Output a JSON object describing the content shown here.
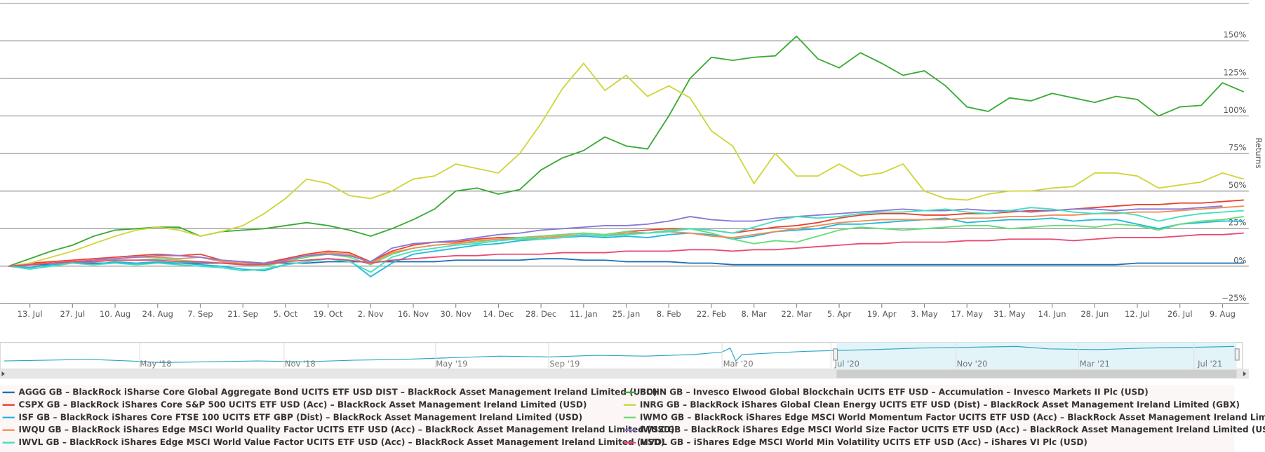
{
  "chart_data": {
    "type": "line",
    "y_axis_title": "Returns",
    "categories": [
      null,
      "13. Jul",
      null,
      "27. Jul",
      null,
      "10. Aug",
      null,
      "24. Aug",
      null,
      "7. Sep",
      null,
      "21. Sep",
      null,
      "5. Oct",
      null,
      "19. Oct",
      null,
      "2. Nov",
      null,
      "16. Nov",
      null,
      "30. Nov",
      null,
      "14. Dec",
      null,
      "28. Dec",
      null,
      "11. Jan",
      null,
      "25. Jan",
      null,
      "8. Feb",
      null,
      "22. Feb",
      null,
      "8. Mar",
      null,
      "22. Mar",
      null,
      "5. Apr",
      null,
      "19. Apr",
      null,
      "3. May",
      null,
      "17. May",
      null,
      "31. May",
      null,
      "14. Jun",
      null,
      "28. Jun",
      null,
      "12. Jul",
      null,
      "26. Jul",
      null,
      "9. Aug",
      null
    ],
    "ylim": [
      -25,
      175
    ],
    "yticks": [
      {
        "value": -25,
        "label": "−25%"
      },
      {
        "value": 0,
        "label": "0%"
      },
      {
        "value": 25,
        "label": "25%"
      },
      {
        "value": 50,
        "label": "50%"
      },
      {
        "value": 75,
        "label": "75%"
      },
      {
        "value": 100,
        "label": "100%"
      },
      {
        "value": 125,
        "label": "125%"
      },
      {
        "value": 150,
        "label": "150%"
      }
    ],
    "grid": true,
    "series": [
      {
        "name": "AGGG GB – BlackRock iSharse Core Global Aggregate Bond UCITS ETF USD DIST – BlackRock Asset Management Ireland Limited (USD)",
        "color": "#1f6fb2",
        "values": [
          0,
          1,
          1,
          2,
          2,
          2,
          2,
          2,
          2,
          2,
          2,
          2,
          2,
          2,
          2,
          3,
          3,
          3,
          3,
          3,
          3,
          4,
          4,
          4,
          4,
          5,
          5,
          4,
          4,
          3,
          3,
          3,
          2,
          2,
          1,
          1,
          1,
          1,
          1,
          1,
          1,
          1,
          1,
          1,
          1,
          1,
          1,
          1,
          1,
          1,
          1,
          1,
          1,
          2,
          2,
          2,
          2,
          2,
          2
        ]
      },
      {
        "name": "BCHN GB – Invesco Elwood Global Blockchain UCITS ETF USD – Accumulation – Invesco Markets II Plc (USD)",
        "color": "#3aaa35",
        "values": [
          0,
          5,
          10,
          14,
          20,
          24,
          25,
          26,
          26,
          20,
          23,
          24,
          25,
          27,
          29,
          27,
          24,
          20,
          25,
          31,
          38,
          50,
          52,
          48,
          51,
          64,
          72,
          77,
          86,
          80,
          78,
          100,
          125,
          139,
          137,
          139,
          140,
          153,
          138,
          132,
          142,
          135,
          127,
          130,
          120,
          106,
          103,
          112,
          110,
          115,
          112,
          109,
          113,
          111,
          100,
          106,
          107,
          122,
          116
        ]
      },
      {
        "name": "CSPX GB – BlackRock iShares Core S&P 500 UCITS ETF USD (Acc) – BlackRock Asset Management Ireland Limited (USD)",
        "color": "#e8432e",
        "values": [
          0,
          2,
          3,
          4,
          5,
          6,
          7,
          8,
          7,
          8,
          4,
          3,
          2,
          5,
          8,
          10,
          9,
          3,
          10,
          14,
          16,
          16,
          18,
          19,
          19,
          20,
          21,
          22,
          21,
          23,
          24,
          25,
          25,
          24,
          22,
          24,
          26,
          27,
          29,
          32,
          34,
          35,
          35,
          34,
          34,
          35,
          35,
          36,
          37,
          37,
          38,
          39,
          40,
          41,
          41,
          42,
          42,
          43,
          44
        ]
      },
      {
        "name": "INRG GB – BlackRock iShares Global Clean Energy UCITS ETF USD (Dist) – BlackRock Asset Management Ireland Limited (GBX)",
        "color": "#cfd63a",
        "values": [
          0,
          2,
          6,
          10,
          15,
          20,
          24,
          26,
          24,
          20,
          23,
          27,
          35,
          45,
          58,
          55,
          47,
          45,
          50,
          58,
          60,
          68,
          65,
          62,
          75,
          95,
          118,
          135,
          117,
          127,
          113,
          120,
          112,
          90,
          80,
          55,
          75,
          60,
          60,
          68,
          60,
          62,
          68,
          50,
          45,
          44,
          48,
          50,
          50,
          52,
          53,
          62,
          62,
          60,
          52,
          54,
          56,
          62,
          58
        ]
      },
      {
        "name": "ISF GB – BlackRock iShares Core FTSE 100 UCITS ETF GBP (Dist) – BlackRock Asset Management Ireland Limited (USD)",
        "color": "#21b9dc",
        "values": [
          0,
          -1,
          1,
          2,
          1,
          3,
          2,
          3,
          2,
          1,
          0,
          -2,
          -3,
          1,
          3,
          5,
          4,
          -7,
          2,
          8,
          10,
          12,
          14,
          15,
          17,
          18,
          19,
          20,
          19,
          20,
          19,
          21,
          22,
          21,
          18,
          20,
          23,
          24,
          25,
          28,
          28,
          29,
          30,
          31,
          32,
          29,
          30,
          31,
          31,
          32,
          30,
          31,
          31,
          28,
          25,
          28,
          29,
          30,
          30
        ]
      },
      {
        "name": "IWMO GB – BlackRock iShares Edge MSCI World Momentum Factor UCITS ETF USD (Acc) – BlackRock Asset Management Ireland Limited (USD)",
        "color": "#66dd77",
        "values": [
          0,
          1,
          2,
          3,
          3,
          4,
          4,
          5,
          4,
          3,
          2,
          1,
          0,
          3,
          6,
          8,
          6,
          1,
          8,
          12,
          14,
          15,
          16,
          18,
          19,
          20,
          21,
          22,
          21,
          23,
          22,
          24,
          25,
          22,
          18,
          15,
          17,
          16,
          20,
          24,
          26,
          25,
          24,
          25,
          26,
          27,
          27,
          25,
          26,
          27,
          27,
          26,
          28,
          27,
          24,
          28,
          30,
          31,
          33
        ]
      },
      {
        "name": "IWQU GB – BlackRock iShares Edge MSCI World Quality Factor UCITS ETF USD (Acc) – BlackRock Asset Management Ireland Limited (USD)",
        "color": "#f28b55",
        "values": [
          0,
          1,
          2,
          3,
          4,
          5,
          6,
          6,
          5,
          6,
          3,
          2,
          1,
          4,
          7,
          9,
          8,
          2,
          9,
          12,
          14,
          15,
          17,
          18,
          18,
          19,
          20,
          21,
          20,
          22,
          22,
          23,
          22,
          20,
          19,
          21,
          23,
          25,
          27,
          29,
          30,
          31,
          31,
          31,
          31,
          32,
          32,
          33,
          33,
          34,
          34,
          35,
          35,
          36,
          36,
          37,
          38,
          39,
          40
        ]
      },
      {
        "name": "IWSZ GB – BlackRock iShares Edge MSCI World Size Factor UCITS ETF USD (Acc) – BlackRock Asset Management Ireland Limited (USD)",
        "color": "#8878d8",
        "values": [
          0,
          1,
          2,
          3,
          4,
          5,
          6,
          7,
          7,
          6,
          4,
          3,
          2,
          4,
          7,
          8,
          7,
          3,
          12,
          15,
          16,
          17,
          19,
          21,
          22,
          24,
          25,
          26,
          27,
          27,
          28,
          30,
          33,
          31,
          30,
          30,
          32,
          33,
          34,
          35,
          36,
          37,
          38,
          37,
          37,
          38,
          37,
          37,
          36,
          37,
          38,
          38,
          37,
          38,
          38,
          38,
          39,
          40,
          null
        ]
      },
      {
        "name": "IWVL GB – BlackRock iShares Edge MSCI World Value Factor UCITS ETF USD (Acc) – BlackRock Asset Management Ireland Limited (USD)",
        "color": "#40e0c0",
        "values": [
          0,
          -2,
          0,
          2,
          1,
          2,
          1,
          2,
          1,
          0,
          -1,
          -3,
          -2,
          1,
          3,
          5,
          3,
          -4,
          6,
          10,
          12,
          14,
          15,
          17,
          18,
          18,
          19,
          21,
          20,
          21,
          22,
          23,
          25,
          24,
          22,
          26,
          30,
          33,
          32,
          33,
          35,
          36,
          36,
          37,
          38,
          36,
          35,
          37,
          39,
          38,
          36,
          35,
          36,
          34,
          30,
          33,
          35,
          36,
          37
        ]
      },
      {
        "name": "MVOL GB – iShares Edge MSCI World Min Volatility UCITS ETF USD (Acc) – iShares VI Plc (USD)",
        "color": "#ea4a72",
        "values": [
          0,
          1,
          2,
          3,
          3,
          4,
          4,
          4,
          3,
          3,
          2,
          1,
          1,
          3,
          4,
          5,
          4,
          2,
          4,
          5,
          6,
          7,
          7,
          8,
          8,
          8,
          9,
          9,
          9,
          10,
          10,
          10,
          11,
          11,
          10,
          11,
          11,
          12,
          13,
          14,
          15,
          15,
          16,
          16,
          16,
          17,
          17,
          18,
          18,
          18,
          17,
          18,
          19,
          19,
          19,
          20,
          21,
          21,
          22
        ]
      }
    ],
    "navigator": {
      "labels": [
        "May '18",
        "Nov '18",
        "May '19",
        "Sep '19",
        "Mar '20",
        "Jul '20",
        "Nov '20",
        "Mar '21",
        "Jul '21"
      ]
    }
  }
}
